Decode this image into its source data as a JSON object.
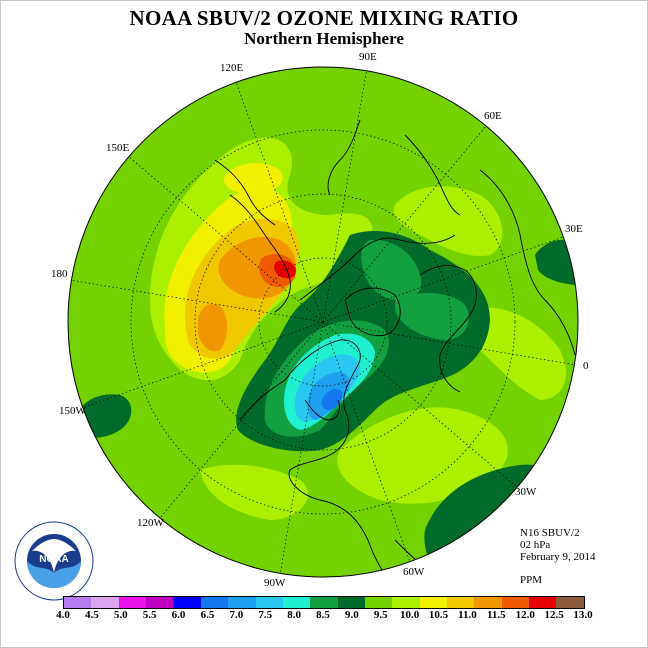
{
  "title": "NOAA SBUV/2 OZONE MIXING RATIO",
  "subtitle": "Northern Hemisphere",
  "longitude_labels": {
    "e90": "90E",
    "e60": "60E",
    "e30": "30E",
    "zero": "0",
    "w30": "30W",
    "w60": "60W",
    "w90": "90W",
    "w120": "120W",
    "w150": "150W",
    "l180": "180",
    "e150": "150E",
    "e120": "120E"
  },
  "info": {
    "instrument": "N16 SBUV/2",
    "level": "02 hPa",
    "date": "February 9, 2014",
    "units": "PPM"
  },
  "logo": {
    "text": "NOAA",
    "ring_text": "NATIONAL OCEANIC AND ATMOSPHERIC ADMINISTRATION · U.S. DEPARTMENT OF COMMERCE"
  },
  "colorbar": {
    "ticks": [
      "4.0",
      "4.5",
      "5.0",
      "5.5",
      "6.0",
      "6.5",
      "7.0",
      "7.5",
      "8.0",
      "8.5",
      "9.0",
      "9.5",
      "10.0",
      "10.5",
      "11.0",
      "11.5",
      "12.0",
      "12.5",
      "13.0"
    ],
    "colors": [
      "#b57cf0",
      "#dba6ee",
      "#ee12ee",
      "#c000c0",
      "#0000ff",
      "#1478f0",
      "#1ea0f0",
      "#28c8f0",
      "#20f0d0",
      "#12a040",
      "#006b2a",
      "#73d200",
      "#aaf000",
      "#f0f000",
      "#f0c800",
      "#f09600",
      "#f05a00",
      "#e60000",
      "#8c5a3c"
    ]
  },
  "colors": {
    "ocean_base": "#73d200",
    "dark_green": "#006b2a",
    "med_green": "#12a040",
    "light_yellowgreen": "#aaf000",
    "yellow": "#f0f000",
    "orange": "#f09600",
    "red": "#e60000"
  }
}
